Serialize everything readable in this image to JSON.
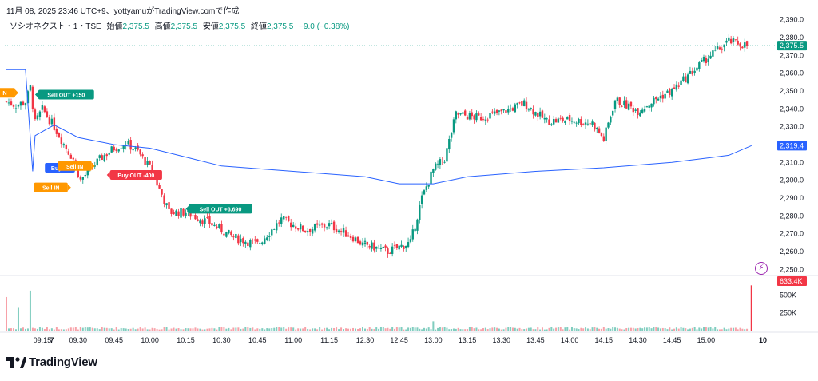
{
  "caption": "11月 08, 2025 23:46 UTC+9、yottyamuがTradingView.comで作成",
  "legend": {
    "symbol": "ソシオネクスト・1・TSE",
    "open_label": "始値",
    "open": "2,375.5",
    "high_label": "高値",
    "high": "2,375.5",
    "low_label": "安値",
    "low": "2,375.5",
    "close_label": "終値",
    "close": "2,375.5",
    "change": "−9.0 (−0.38%)"
  },
  "brand": {
    "name": "TradingView",
    "icon": "tradingview-logo-icon"
  },
  "alert_icon": "lightning-icon",
  "colors": {
    "up": "#089981",
    "down": "#f23645",
    "vwap": "#2962ff",
    "buy": "#2962ff",
    "sell_in": "#ff9800",
    "sell_out": "#089981",
    "buy_out": "#f23645"
  },
  "chart_data": {
    "type": "candlestick",
    "timeframe": "1m",
    "price_axis": {
      "ticks": [
        "2,390.0",
        "2,380.0",
        "2,370.0",
        "2,360.0",
        "2,350.0",
        "2,340.0",
        "2,330.0",
        "2,320.0",
        "2,310.0",
        "2,300.0",
        "2,290.0",
        "2,280.0",
        "2,270.0",
        "2,260.0",
        "2,250.0"
      ],
      "range": [
        2247,
        2393
      ]
    },
    "volume_axis": {
      "ticks": [
        "500K",
        "250K"
      ],
      "range": [
        0,
        760000
      ]
    },
    "time_axis": [
      "7",
      "09:15",
      "09:30",
      "09:45",
      "10:00",
      "10:15",
      "10:30",
      "10:45",
      "11:00",
      "11:15",
      "12:30",
      "12:45",
      "13:00",
      "13:15",
      "13:30",
      "13:45",
      "14:00",
      "14:15",
      "14:30",
      "14:45",
      "15:00",
      "10"
    ],
    "last_price": {
      "label": "2,375.5",
      "value": 2375.5
    },
    "vwap_last": {
      "label": "2,319.4",
      "value": 2319.4
    },
    "last_volume": {
      "label": "633.4K",
      "value": 633400
    },
    "close_path": [
      {
        "t": 9.0,
        "p": 2344
      },
      {
        "t": 9.04,
        "p": 2342
      },
      {
        "t": 9.08,
        "p": 2344
      },
      {
        "t": 9.1,
        "p": 2352
      },
      {
        "t": 9.12,
        "p": 2332
      },
      {
        "t": 9.15,
        "p": 2340
      },
      {
        "t": 9.2,
        "p": 2330
      },
      {
        "t": 9.25,
        "p": 2318
      },
      {
        "t": 9.28,
        "p": 2312
      },
      {
        "t": 9.31,
        "p": 2300
      },
      {
        "t": 9.35,
        "p": 2306
      },
      {
        "t": 9.4,
        "p": 2313
      },
      {
        "t": 9.45,
        "p": 2318
      },
      {
        "t": 9.5,
        "p": 2321
      },
      {
        "t": 9.55,
        "p": 2316
      },
      {
        "t": 10.0,
        "p": 2307
      },
      {
        "t": 10.05,
        "p": 2292
      },
      {
        "t": 10.08,
        "p": 2282
      },
      {
        "t": 10.15,
        "p": 2282
      },
      {
        "t": 10.25,
        "p": 2276
      },
      {
        "t": 10.35,
        "p": 2268
      },
      {
        "t": 10.45,
        "p": 2264
      },
      {
        "t": 10.55,
        "p": 2278
      },
      {
        "t": 11.05,
        "p": 2272
      },
      {
        "t": 11.15,
        "p": 2275
      },
      {
        "t": 11.25,
        "p": 2268
      },
      {
        "t": 11.3,
        "p": 2263
      },
      {
        "t": 12.3,
        "p": 2264
      },
      {
        "t": 12.4,
        "p": 2260
      },
      {
        "t": 12.5,
        "p": 2265
      },
      {
        "t": 12.55,
        "p": 2290
      },
      {
        "t": 13.0,
        "p": 2306
      },
      {
        "t": 13.05,
        "p": 2312
      },
      {
        "t": 13.1,
        "p": 2337
      },
      {
        "t": 13.2,
        "p": 2335
      },
      {
        "t": 13.3,
        "p": 2338
      },
      {
        "t": 13.4,
        "p": 2343
      },
      {
        "t": 13.5,
        "p": 2333
      },
      {
        "t": 14.0,
        "p": 2334
      },
      {
        "t": 14.1,
        "p": 2332
      },
      {
        "t": 14.15,
        "p": 2323
      },
      {
        "t": 14.2,
        "p": 2345
      },
      {
        "t": 14.3,
        "p": 2339
      },
      {
        "t": 14.4,
        "p": 2347
      },
      {
        "t": 14.45,
        "p": 2350
      },
      {
        "t": 14.55,
        "p": 2362
      },
      {
        "t": 15.0,
        "p": 2368
      },
      {
        "t": 15.1,
        "p": 2378
      },
      {
        "t": 15.18,
        "p": 2375.5
      }
    ],
    "vwap_path": [
      {
        "t": 9.0,
        "p": 2362
      },
      {
        "t": 9.08,
        "p": 2362
      },
      {
        "t": 9.11,
        "p": 2305
      },
      {
        "t": 9.12,
        "p": 2325
      },
      {
        "t": 9.2,
        "p": 2331
      },
      {
        "t": 9.3,
        "p": 2324
      },
      {
        "t": 9.45,
        "p": 2320
      },
      {
        "t": 10.0,
        "p": 2318
      },
      {
        "t": 10.15,
        "p": 2313
      },
      {
        "t": 10.3,
        "p": 2308
      },
      {
        "t": 11.0,
        "p": 2305
      },
      {
        "t": 11.3,
        "p": 2302
      },
      {
        "t": 12.45,
        "p": 2298
      },
      {
        "t": 13.0,
        "p": 2298
      },
      {
        "t": 13.15,
        "p": 2302
      },
      {
        "t": 13.45,
        "p": 2305
      },
      {
        "t": 14.15,
        "p": 2307
      },
      {
        "t": 14.45,
        "p": 2310
      },
      {
        "t": 15.1,
        "p": 2314
      },
      {
        "t": 15.2,
        "p": 2319.4
      }
    ],
    "volume_spikes": [
      {
        "t": 9.0,
        "v": 470000
      },
      {
        "t": 9.05,
        "v": 330000
      },
      {
        "t": 9.1,
        "v": 560000
      },
      {
        "t": 12.25,
        "v": 210000
      },
      {
        "t": 13.0,
        "v": 130000
      },
      {
        "t": 15.2,
        "v": 633400
      }
    ],
    "trades": [
      {
        "label": "Sell IN",
        "kind": "sell_in",
        "t": 9.05,
        "p": 2349
      },
      {
        "label": "Sell OUT +150",
        "kind": "sell_out",
        "t": 9.12,
        "p": 2348
      },
      {
        "label": "Buy IN",
        "kind": "buy",
        "t": 9.3,
        "p": 2307
      },
      {
        "label": "Sell IN",
        "kind": "sell_in",
        "t": 9.37,
        "p": 2308
      },
      {
        "label": "Buy OUT -400",
        "kind": "buy_out",
        "t": 9.42,
        "p": 2303
      },
      {
        "label": "Sell IN",
        "kind": "sell_in",
        "t": 9.27,
        "p": 2296
      },
      {
        "label": "Sell OUT +3,690",
        "kind": "sell_out",
        "t": 10.15,
        "p": 2284
      }
    ]
  }
}
